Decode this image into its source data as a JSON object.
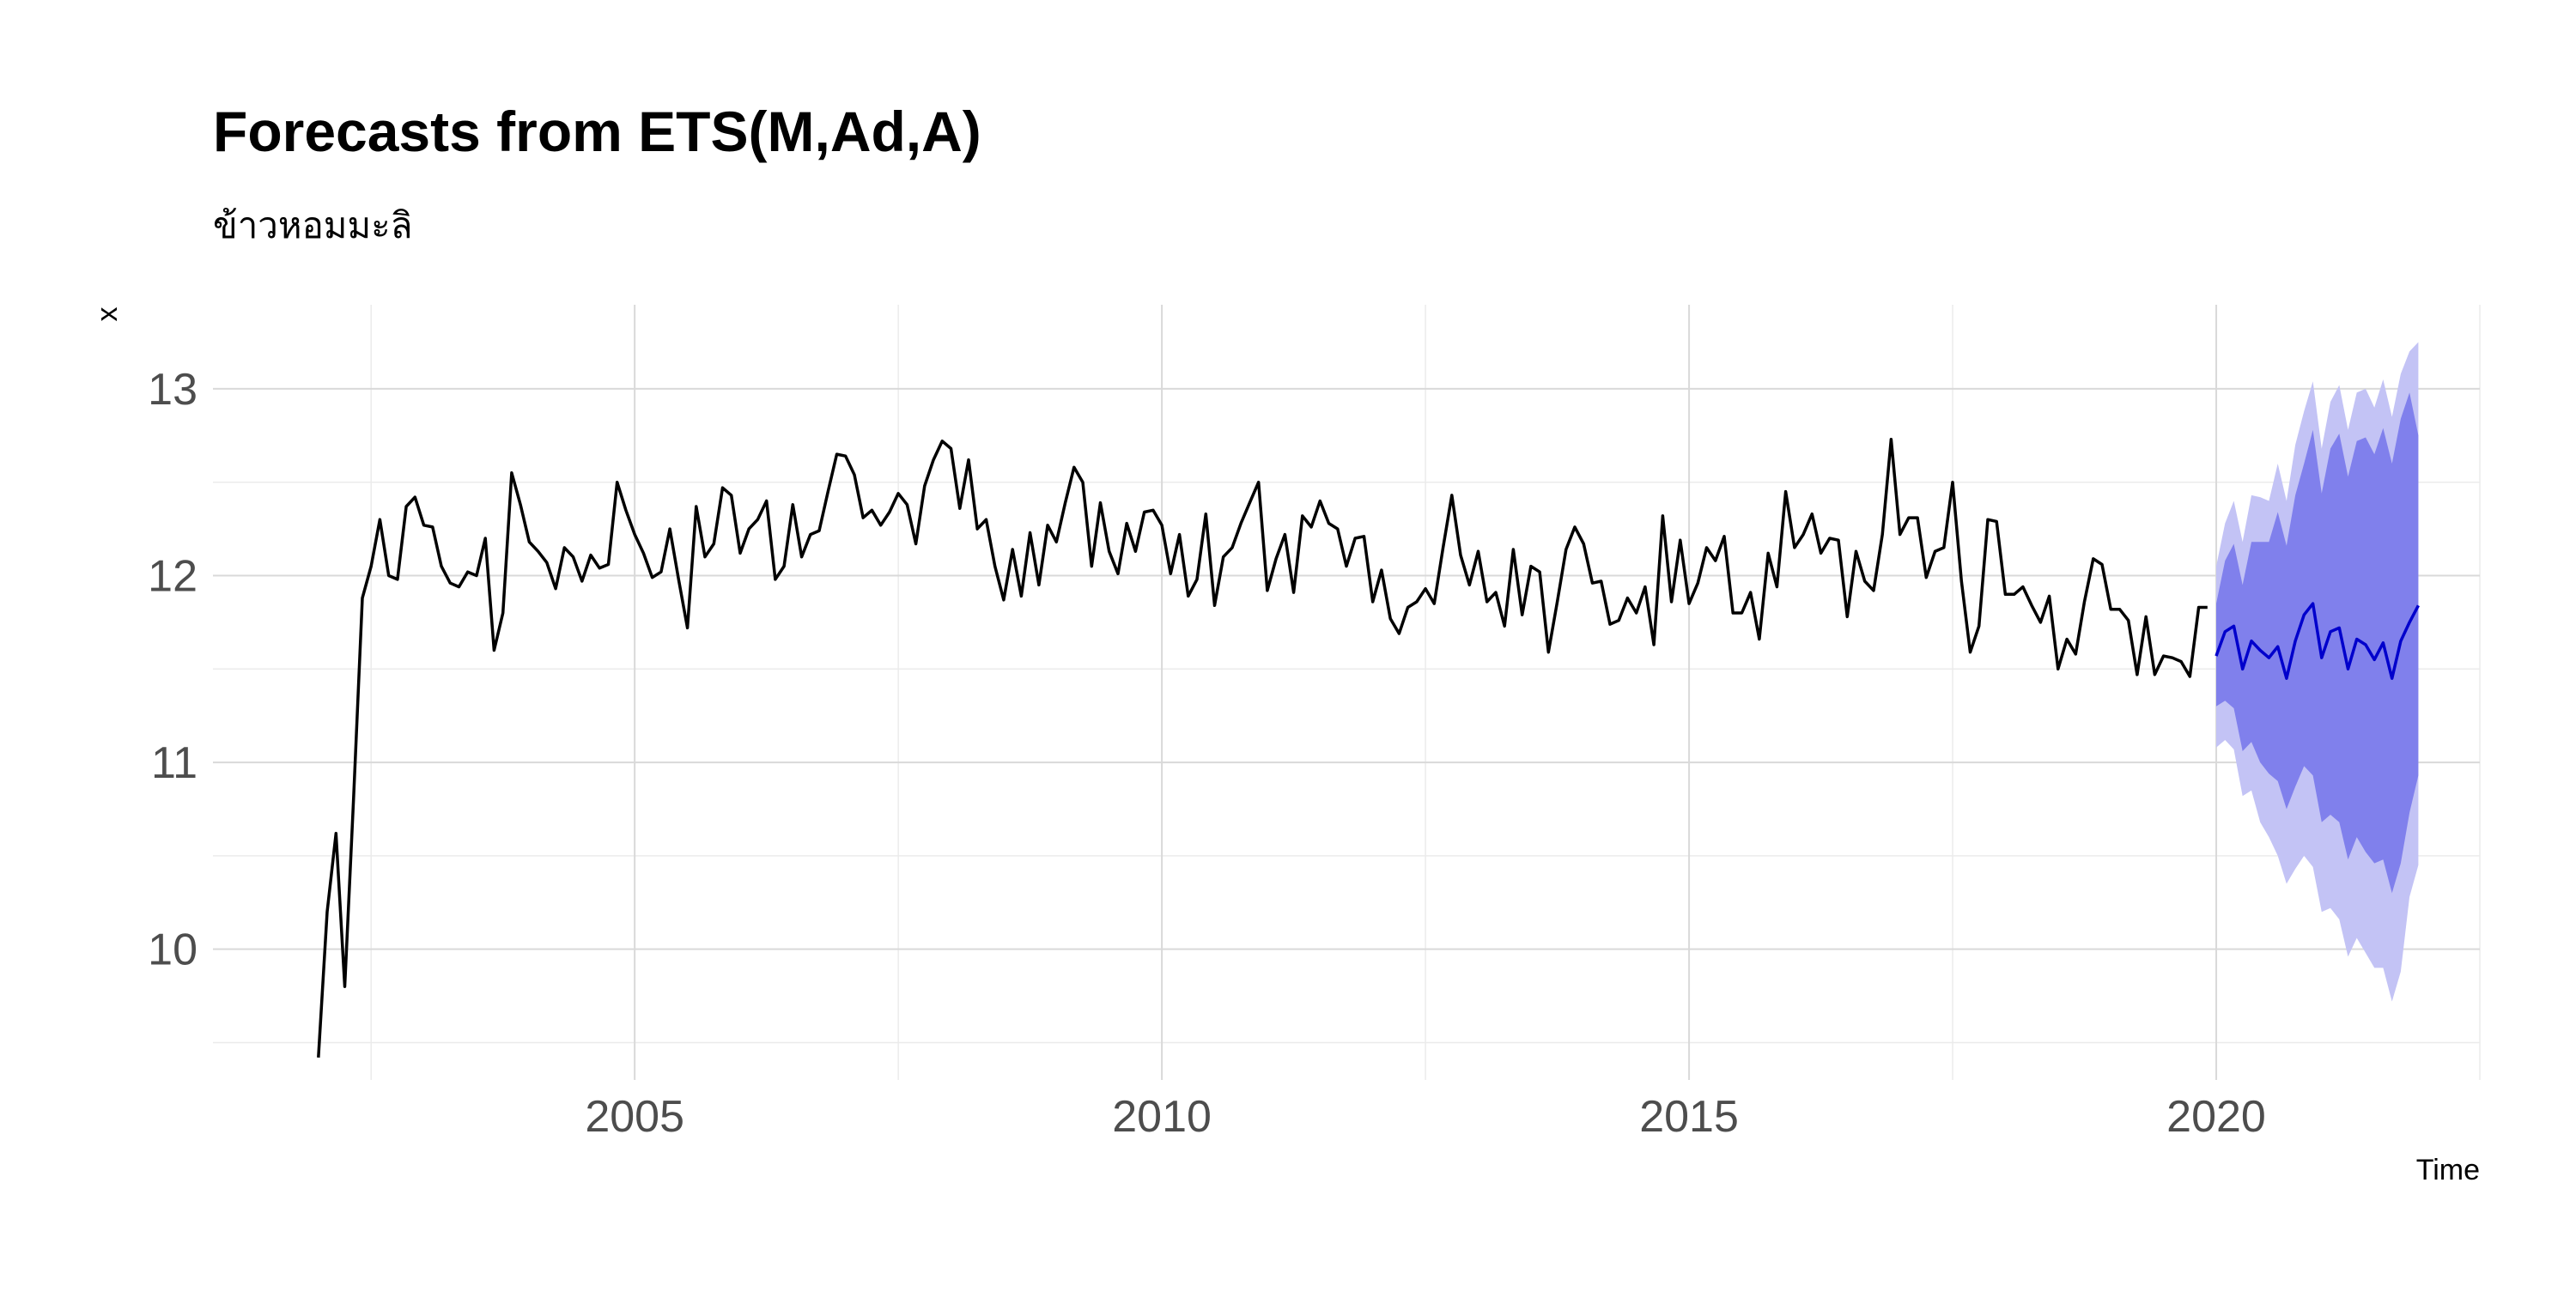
{
  "chart_data": {
    "type": "line",
    "title": "Forecasts from ETS(M,Ad,A)",
    "subtitle": "ข้าวหอมมะลิ",
    "xlabel": "Time",
    "ylabel": "x",
    "xlim": [
      2001,
      2022.5
    ],
    "ylim": [
      9.3,
      13.45
    ],
    "x_ticks": [
      2005,
      2010,
      2015,
      2020
    ],
    "x_tick_labels": [
      "2005",
      "2010",
      "2015",
      "2020"
    ],
    "y_ticks": [
      10,
      11,
      12,
      13
    ],
    "y_tick_labels": [
      "10",
      "11",
      "12",
      "13"
    ],
    "grid": true,
    "legend": "none",
    "colors": {
      "history": "#000000",
      "forecast_mean": "#0000cc",
      "interval_80": "#8080ec",
      "interval_95": "#c3c3f5"
    },
    "series": [
      {
        "start": 2002.0,
        "frequency": 12,
        "values": [
          9.42,
          10.2,
          10.62,
          9.8,
          10.8,
          11.88,
          12.05,
          12.3,
          12.0,
          11.98,
          12.37,
          12.42,
          12.27,
          12.26,
          12.05,
          11.96,
          11.94,
          12.02,
          12.0,
          12.2,
          11.6,
          11.8,
          12.55,
          12.38,
          12.18,
          12.13,
          12.07,
          11.93,
          12.15,
          12.1,
          11.97,
          12.11,
          12.04,
          12.06,
          12.5,
          12.35,
          12.22,
          12.12,
          11.99,
          12.02,
          12.25,
          11.98,
          11.72,
          12.37,
          12.1,
          12.17,
          12.47,
          12.43,
          12.12,
          12.25,
          12.3,
          12.4,
          11.98,
          12.05,
          12.38,
          12.1,
          12.22,
          12.24,
          12.45,
          12.65,
          12.64,
          12.54,
          12.31,
          12.35,
          12.27,
          12.34,
          12.44,
          12.38,
          12.17,
          12.48,
          12.62,
          12.72,
          12.68,
          12.36,
          12.62,
          12.25,
          12.3,
          12.05,
          11.87,
          12.14,
          11.89,
          12.23,
          11.95,
          12.27,
          12.18,
          12.39,
          12.58,
          12.5,
          12.05,
          12.39,
          12.13,
          12.01,
          12.28,
          12.13,
          12.34,
          12.35,
          12.27,
          12.01,
          12.22,
          11.89,
          11.98,
          12.33,
          11.84,
          12.1,
          12.15,
          12.28,
          12.39,
          12.5,
          11.92,
          12.09,
          12.22,
          11.91,
          12.32,
          12.26,
          12.4,
          12.28,
          12.25,
          12.05,
          12.2,
          12.21,
          11.86,
          12.03,
          11.77,
          11.69,
          11.83,
          11.86,
          11.93,
          11.85,
          12.15,
          12.43,
          12.11,
          11.95,
          12.13,
          11.86,
          11.91,
          11.73,
          12.14,
          11.79,
          12.05,
          12.02,
          11.59,
          11.86,
          12.14,
          12.26,
          12.17,
          11.96,
          11.97,
          11.74,
          11.76,
          11.88,
          11.8,
          11.94,
          11.63,
          12.32,
          11.86,
          12.19,
          11.85,
          11.96,
          12.15,
          12.08,
          12.21,
          11.8,
          11.8,
          11.91,
          11.66,
          12.12,
          11.94,
          12.45,
          12.15,
          12.22,
          12.33,
          12.12,
          12.2,
          12.19,
          11.78,
          12.13,
          11.97,
          11.92,
          12.22,
          12.73,
          12.22,
          12.31,
          12.31,
          11.99,
          12.13,
          12.15,
          12.5,
          11.97,
          11.59,
          11.73,
          12.3,
          12.29,
          11.9,
          11.9,
          11.94,
          11.84,
          11.75,
          11.89,
          11.5,
          11.66,
          11.58,
          11.86,
          12.09,
          12.06,
          11.82,
          11.82,
          11.76,
          11.47,
          11.78,
          11.47,
          11.57,
          11.56,
          11.54,
          11.46,
          11.83,
          11.83
        ]
      },
      {
        "start": 2020.0,
        "frequency": 12,
        "values": [
          11.57,
          11.7,
          11.73,
          11.5,
          11.65,
          11.6,
          11.56,
          11.62,
          11.45,
          11.65,
          11.79,
          11.85,
          11.56,
          11.7,
          11.72,
          11.5,
          11.66,
          11.63,
          11.55,
          11.64,
          11.45,
          11.65,
          11.75,
          11.84
        ],
        "lower_80": [
          11.3,
          11.33,
          11.29,
          11.06,
          11.11,
          11.0,
          10.94,
          10.9,
          10.75,
          10.87,
          10.98,
          10.93,
          10.68,
          10.72,
          10.68,
          10.48,
          10.6,
          10.52,
          10.46,
          10.48,
          10.3,
          10.46,
          10.73,
          10.93
        ],
        "upper_80": [
          11.85,
          12.08,
          12.17,
          11.95,
          12.18,
          12.18,
          12.18,
          12.34,
          12.16,
          12.43,
          12.6,
          12.78,
          12.44,
          12.68,
          12.76,
          12.53,
          12.72,
          12.74,
          12.65,
          12.79,
          12.6,
          12.84,
          12.98,
          12.75
        ],
        "lower_95": [
          11.08,
          11.12,
          11.07,
          10.82,
          10.85,
          10.68,
          10.6,
          10.5,
          10.35,
          10.43,
          10.5,
          10.44,
          10.2,
          10.22,
          10.16,
          9.96,
          10.06,
          9.98,
          9.9,
          9.9,
          9.72,
          9.88,
          10.28,
          10.45
        ],
        "upper_95": [
          12.05,
          12.28,
          12.4,
          12.18,
          12.43,
          12.42,
          12.4,
          12.6,
          12.4,
          12.7,
          12.88,
          13.04,
          12.68,
          12.93,
          13.02,
          12.78,
          12.98,
          13.0,
          12.9,
          13.05,
          12.85,
          13.08,
          13.2,
          13.25
        ]
      }
    ]
  }
}
